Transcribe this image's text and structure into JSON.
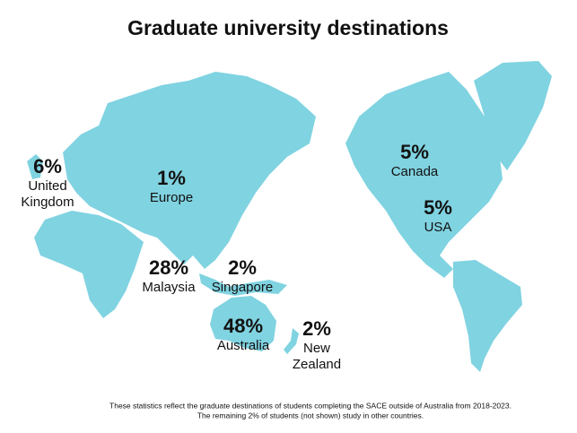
{
  "title": "Graduate university destinations",
  "regions": [
    {
      "percent": "6%",
      "name_lines": [
        "United",
        "Kingdom"
      ]
    },
    {
      "percent": "1%",
      "name_lines": [
        "Europe"
      ]
    },
    {
      "percent": "28%",
      "name_lines": [
        "Malaysia"
      ]
    },
    {
      "percent": "2%",
      "name_lines": [
        "Singapore"
      ]
    },
    {
      "percent": "48%",
      "name_lines": [
        "Australia"
      ]
    },
    {
      "percent": "2%",
      "name_lines": [
        "New",
        "Zealand"
      ]
    },
    {
      "percent": "5%",
      "name_lines": [
        "Canada"
      ]
    },
    {
      "percent": "5%",
      "name_lines": [
        "USA"
      ]
    }
  ],
  "footnote": [
    "These statistics reflect the graduate destinations of students completing the SACE outside of Australia from 2018-2023.",
    "The remaining 2% of students (not shown) study in other countries."
  ]
}
